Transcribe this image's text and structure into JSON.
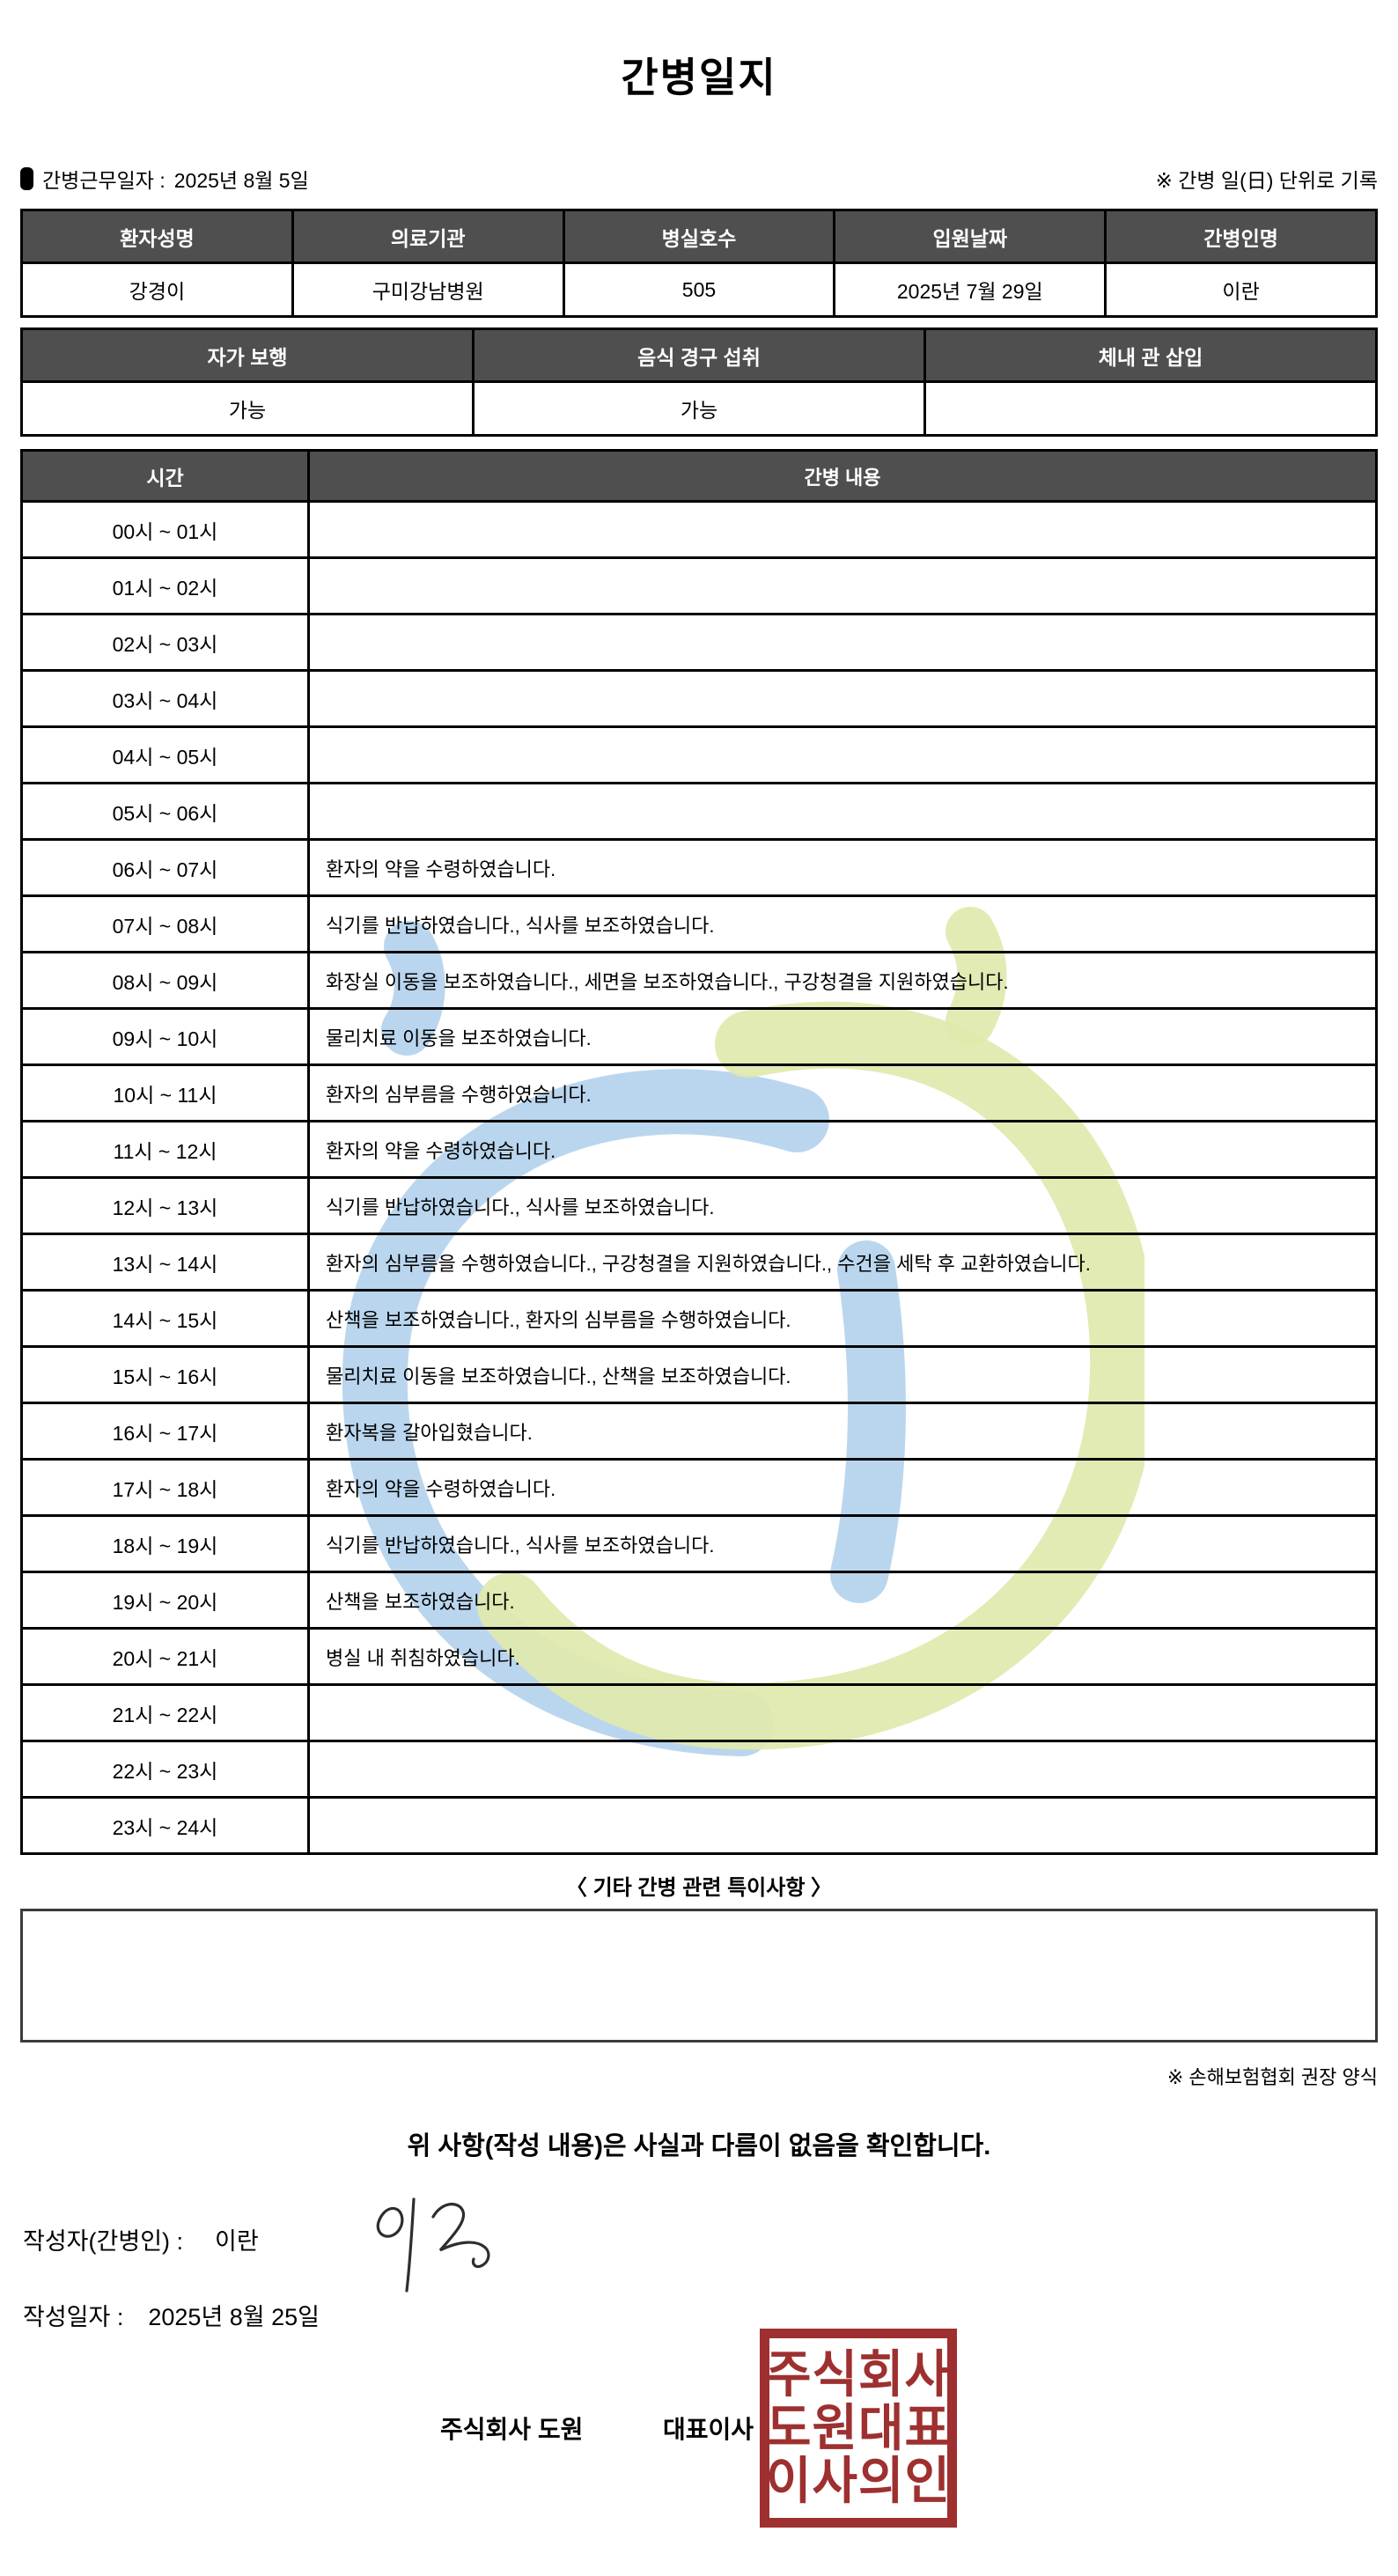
{
  "doc": {
    "title": "간병일지"
  },
  "meta": {
    "work_date_label": "간병근무일자  :",
    "work_date": "2025년 8월 5일",
    "unit_note": "※ 간병 일(日) 단위로 기록"
  },
  "patient_table": {
    "headers": [
      "환자성명",
      "의료기관",
      "병실호수",
      "입원날짜",
      "간병인명"
    ],
    "values": [
      "강경이",
      "구미강남병원",
      "505",
      "2025년 7월 29일",
      "이란"
    ]
  },
  "status_table": {
    "headers": [
      "자가 보행",
      "음식 경구 섭취",
      "체내 관 삽입"
    ],
    "values": [
      "가능",
      "가능",
      ""
    ]
  },
  "schedule": {
    "time_header": "시간",
    "content_header": "간병 내용",
    "rows": [
      {
        "time": "00시 ~ 01시",
        "content": ""
      },
      {
        "time": "01시 ~ 02시",
        "content": ""
      },
      {
        "time": "02시 ~ 03시",
        "content": ""
      },
      {
        "time": "03시 ~ 04시",
        "content": ""
      },
      {
        "time": "04시 ~ 05시",
        "content": ""
      },
      {
        "time": "05시 ~ 06시",
        "content": ""
      },
      {
        "time": "06시 ~ 07시",
        "content": "환자의 약을 수령하였습니다."
      },
      {
        "time": "07시 ~ 08시",
        "content": "식기를 반납하였습니다., 식사를 보조하였습니다."
      },
      {
        "time": "08시 ~ 09시",
        "content": "화장실 이동을 보조하였습니다., 세면을 보조하였습니다., 구강청결을 지원하였습니다."
      },
      {
        "time": "09시 ~ 10시",
        "content": "물리치료 이동을 보조하였습니다."
      },
      {
        "time": "10시 ~ 11시",
        "content": "환자의 심부름을 수행하였습니다."
      },
      {
        "time": "11시 ~ 12시",
        "content": "환자의 약을 수령하였습니다."
      },
      {
        "time": "12시 ~ 13시",
        "content": "식기를 반납하였습니다., 식사를 보조하였습니다."
      },
      {
        "time": "13시 ~ 14시",
        "content": "환자의 심부름을 수행하였습니다., 구강청결을 지원하였습니다., 수건을 세탁 후 교환하였습니다."
      },
      {
        "time": "14시 ~ 15시",
        "content": "산책을 보조하였습니다., 환자의 심부름을 수행하였습니다."
      },
      {
        "time": "15시 ~ 16시",
        "content": "물리치료 이동을 보조하였습니다., 산책을 보조하였습니다."
      },
      {
        "time": "16시 ~ 17시",
        "content": "환자복을 갈아입혔습니다."
      },
      {
        "time": "17시 ~ 18시",
        "content": "환자의 약을 수령하였습니다."
      },
      {
        "time": "18시 ~ 19시",
        "content": "식기를 반납하였습니다., 식사를 보조하였습니다."
      },
      {
        "time": "19시 ~ 20시",
        "content": "산책을 보조하였습니다."
      },
      {
        "time": "20시 ~ 21시",
        "content": "병실 내 취침하였습니다."
      },
      {
        "time": "21시 ~ 22시",
        "content": ""
      },
      {
        "time": "22시 ~ 23시",
        "content": ""
      },
      {
        "time": "23시 ~ 24시",
        "content": ""
      }
    ]
  },
  "notes": {
    "heading": "〈 기타 간병 관련 특이사항 〉",
    "box_content": "",
    "form_note": "※ 손해보험협회 권장 양식"
  },
  "confirmation": {
    "statement": "위 사항(작성 내용)은 사실과 다름이 없음을 확인합니다.",
    "writer_label": "작성자(간병인) :",
    "writer_name": "이란",
    "date_label": "작성일자 :",
    "date_value": "2025년 8월 25일",
    "company": "주식회사 도원",
    "role": "대표이사"
  },
  "stamp": {
    "lines": [
      "주식회사",
      "도원대표",
      "이사의인"
    ],
    "color": "#9e3030"
  },
  "watermark": {
    "blue": "#b3d2ec",
    "green": "#dfe9ad"
  }
}
